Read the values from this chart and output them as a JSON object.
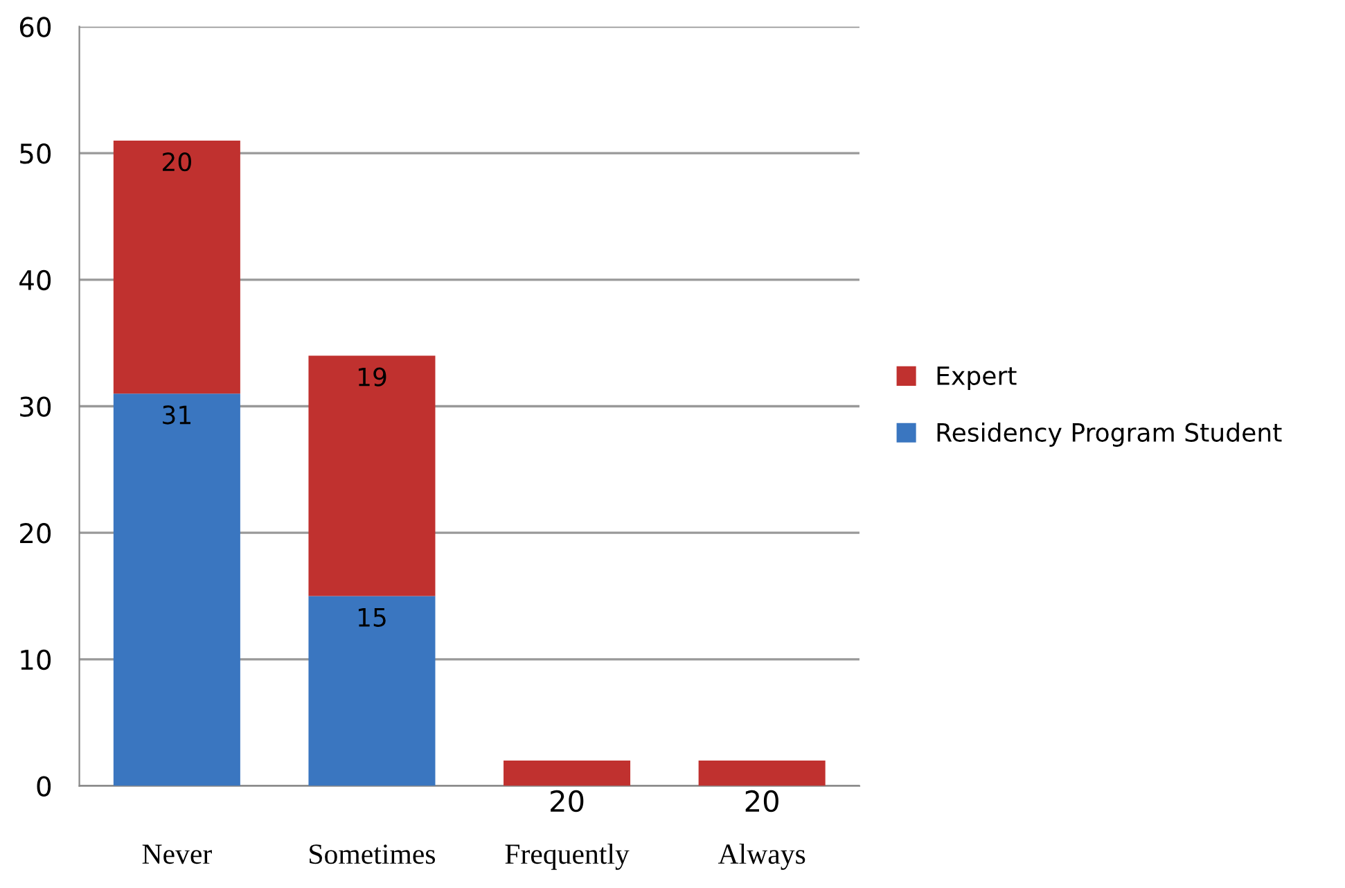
{
  "chart_data": {
    "type": "bar",
    "stacked": true,
    "categories": [
      "Never",
      "Sometimes",
      "Frequently",
      "Always"
    ],
    "series": [
      {
        "name": "Residency Program Student",
        "color": "#3a76c0",
        "values": [
          31,
          15,
          null,
          null
        ],
        "value_labels": [
          "31",
          "15",
          null,
          null
        ]
      },
      {
        "name": "Expert",
        "color": "#c0312f",
        "values": [
          20,
          19,
          2,
          2
        ],
        "value_labels": [
          "20",
          "19",
          null,
          null
        ]
      }
    ],
    "annotations": [
      "20",
      "20"
    ],
    "ylim": [
      0,
      60
    ],
    "yticks": [
      0,
      10,
      20,
      30,
      40,
      50,
      60
    ],
    "grid": "y",
    "legend": "right"
  }
}
